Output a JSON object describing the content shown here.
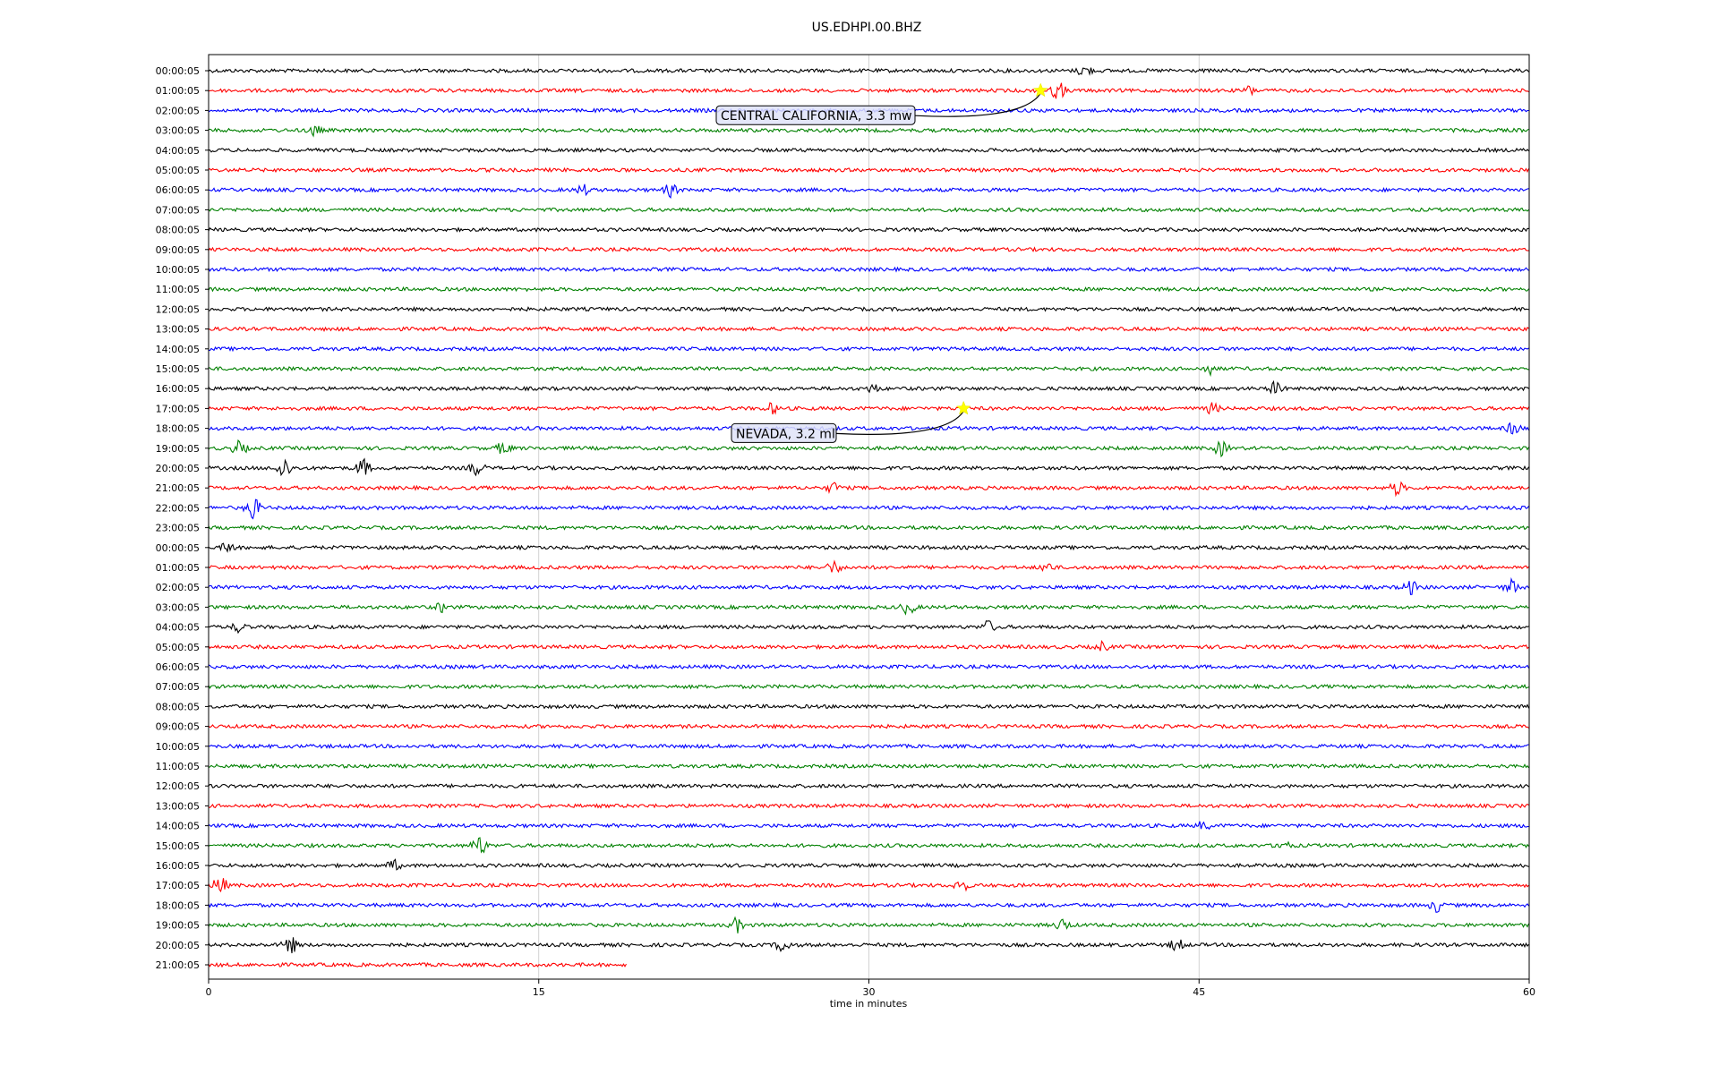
{
  "chart_data": {
    "type": "line",
    "title": "US.EDHPI.00.BHZ",
    "xlabel": "time in minutes",
    "ylabel": "",
    "xlim": [
      0,
      60
    ],
    "x_ticks": [
      "0",
      "15",
      "30",
      "45",
      "60"
    ],
    "grid": "vertical",
    "trace_colors": [
      "#000000",
      "#ff0000",
      "#0000ff",
      "#008000"
    ],
    "row_labels": [
      "00:00:05",
      "01:00:05",
      "02:00:05",
      "03:00:05",
      "04:00:05",
      "05:00:05",
      "06:00:05",
      "07:00:05",
      "08:00:05",
      "09:00:05",
      "10:00:05",
      "11:00:05",
      "12:00:05",
      "13:00:05",
      "14:00:05",
      "15:00:05",
      "16:00:05",
      "17:00:05",
      "18:00:05",
      "19:00:05",
      "20:00:05",
      "21:00:05",
      "22:00:05",
      "23:00:05",
      "00:00:05",
      "01:00:05",
      "02:00:05",
      "03:00:05",
      "04:00:05",
      "05:00:05",
      "06:00:05",
      "07:00:05",
      "08:00:05",
      "09:00:05",
      "10:00:05",
      "11:00:05",
      "12:00:05",
      "13:00:05",
      "14:00:05",
      "15:00:05",
      "16:00:05",
      "17:00:05",
      "18:00:05",
      "19:00:05",
      "20:00:05",
      "21:00:05"
    ],
    "last_row_end_minute": 19,
    "events": [
      {
        "label": "CENTRAL CALIFORNIA, 3.3 mw",
        "row": 1,
        "minute": 37.8,
        "marker_color": "#ffff00"
      },
      {
        "label": "NEVADA, 3.2 ml",
        "row": 17,
        "minute": 34.3,
        "marker_color": "#ffff00"
      }
    ],
    "bursts": [
      {
        "row": 0,
        "minute": 39.8,
        "amp": 9
      },
      {
        "row": 1,
        "minute": 38.6,
        "amp": 12
      },
      {
        "row": 1,
        "minute": 47.3,
        "amp": 7
      },
      {
        "row": 3,
        "minute": 4.8,
        "amp": 8
      },
      {
        "row": 6,
        "minute": 17.0,
        "amp": 8
      },
      {
        "row": 6,
        "minute": 21.0,
        "amp": 9
      },
      {
        "row": 15,
        "minute": 45.5,
        "amp": 8
      },
      {
        "row": 16,
        "minute": 30.2,
        "amp": 7
      },
      {
        "row": 16,
        "minute": 48.5,
        "amp": 10
      },
      {
        "row": 17,
        "minute": 25.6,
        "amp": 8
      },
      {
        "row": 17,
        "minute": 45.6,
        "amp": 8
      },
      {
        "row": 18,
        "minute": 59.3,
        "amp": 9
      },
      {
        "row": 19,
        "minute": 1.4,
        "amp": 10
      },
      {
        "row": 19,
        "minute": 13.4,
        "amp": 9
      },
      {
        "row": 19,
        "minute": 46.0,
        "amp": 10
      },
      {
        "row": 20,
        "minute": 3.4,
        "amp": 14
      },
      {
        "row": 20,
        "minute": 7.0,
        "amp": 12
      },
      {
        "row": 20,
        "minute": 12.2,
        "amp": 10
      },
      {
        "row": 21,
        "minute": 28.4,
        "amp": 8
      },
      {
        "row": 21,
        "minute": 54.0,
        "amp": 10
      },
      {
        "row": 22,
        "minute": 2.0,
        "amp": 14
      },
      {
        "row": 24,
        "minute": 0.9,
        "amp": 8
      },
      {
        "row": 25,
        "minute": 28.4,
        "amp": 9
      },
      {
        "row": 25,
        "minute": 38.1,
        "amp": 8
      },
      {
        "row": 26,
        "minute": 54.6,
        "amp": 10
      },
      {
        "row": 26,
        "minute": 59.2,
        "amp": 10
      },
      {
        "row": 27,
        "minute": 10.6,
        "amp": 7
      },
      {
        "row": 27,
        "minute": 31.8,
        "amp": 10
      },
      {
        "row": 28,
        "minute": 1.4,
        "amp": 8
      },
      {
        "row": 28,
        "minute": 35.4,
        "amp": 9
      },
      {
        "row": 29,
        "minute": 40.6,
        "amp": 7
      },
      {
        "row": 38,
        "minute": 45.2,
        "amp": 7
      },
      {
        "row": 39,
        "minute": 12.3,
        "amp": 13
      },
      {
        "row": 39,
        "minute": 48.8,
        "amp": 8
      },
      {
        "row": 40,
        "minute": 8.4,
        "amp": 8
      },
      {
        "row": 41,
        "minute": 0.5,
        "amp": 12
      },
      {
        "row": 41,
        "minute": 34.2,
        "amp": 9
      },
      {
        "row": 42,
        "minute": 55.8,
        "amp": 9
      },
      {
        "row": 43,
        "minute": 24.0,
        "amp": 10
      },
      {
        "row": 43,
        "minute": 38.8,
        "amp": 9
      },
      {
        "row": 44,
        "minute": 3.7,
        "amp": 12
      },
      {
        "row": 44,
        "minute": 26.1,
        "amp": 10
      },
      {
        "row": 44,
        "minute": 44.0,
        "amp": 9
      }
    ]
  }
}
